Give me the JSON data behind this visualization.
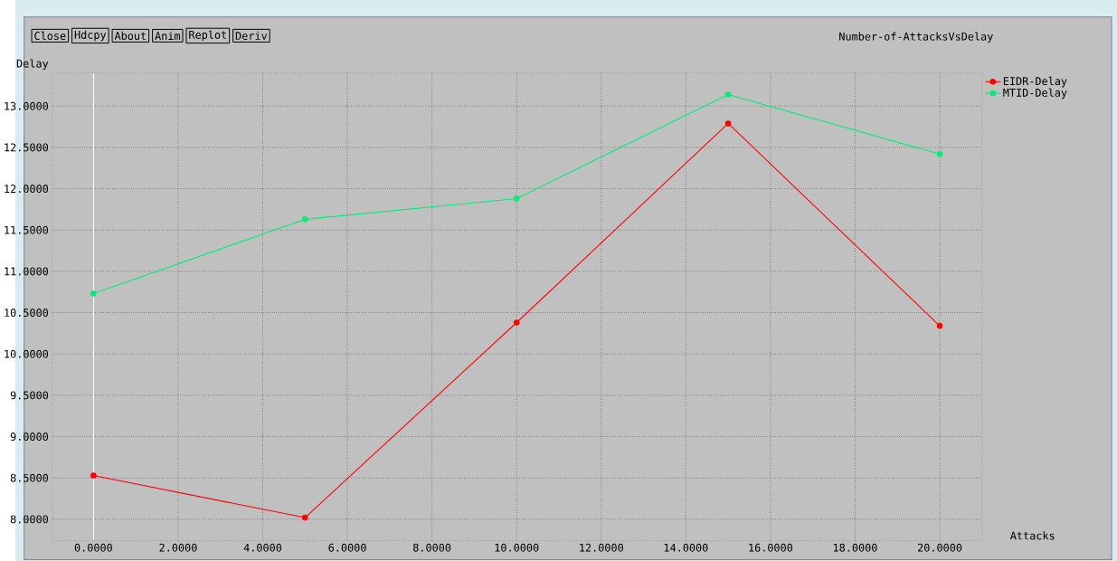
{
  "chart_data": {
    "type": "line",
    "title": "Number-of-AttacksVsDelay",
    "xlabel": "Attacks",
    "ylabel": "Delay",
    "annotations": [
      "Close",
      "Hdcpy",
      "About",
      "Anim",
      "Replot",
      "Deriv"
    ],
    "x": [
      0,
      5,
      10,
      15,
      20
    ],
    "series": [
      {
        "name": "EIDR-Delay",
        "color": "#ff0000",
        "values": [
          8.53,
          8.02,
          10.38,
          12.79,
          10.34
        ]
      },
      {
        "name": "MTID-Delay",
        "color": "#00ee77",
        "values": [
          10.73,
          11.63,
          11.88,
          13.14,
          12.42
        ]
      }
    ],
    "xlim": [
      -0.97,
      21.0
    ],
    "ylim": [
      7.74,
      13.4
    ],
    "xticks": [
      {
        "value": 0,
        "label": "0.0000"
      },
      {
        "value": 2,
        "label": "2.0000"
      },
      {
        "value": 4,
        "label": "4.0000"
      },
      {
        "value": 6,
        "label": "6.0000"
      },
      {
        "value": 8,
        "label": "8.0000"
      },
      {
        "value": 10,
        "label": "10.0000"
      },
      {
        "value": 12,
        "label": "12.0000"
      },
      {
        "value": 14,
        "label": "14.0000"
      },
      {
        "value": 16,
        "label": "16.0000"
      },
      {
        "value": 18,
        "label": "18.0000"
      },
      {
        "value": 20,
        "label": "20.0000"
      }
    ],
    "yticks": [
      {
        "value": 8,
        "label": "8.0000"
      },
      {
        "value": 8.5,
        "label": "8.5000"
      },
      {
        "value": 9,
        "label": "9.0000"
      },
      {
        "value": 9.5,
        "label": "9.5000"
      },
      {
        "value": 10,
        "label": "10.0000"
      },
      {
        "value": 10.5,
        "label": "10.5000"
      },
      {
        "value": 11,
        "label": "11.0000"
      },
      {
        "value": 11.5,
        "label": "11.5000"
      },
      {
        "value": 12,
        "label": "12.0000"
      },
      {
        "value": 12.5,
        "label": "12.5000"
      },
      {
        "value": 13,
        "label": "13.0000"
      }
    ],
    "ref_lines": [
      {
        "axis": "x",
        "value": 0,
        "color": "#ffffff"
      }
    ],
    "grid": true,
    "legend": "right",
    "marker": "circle",
    "line_style": "solid"
  }
}
